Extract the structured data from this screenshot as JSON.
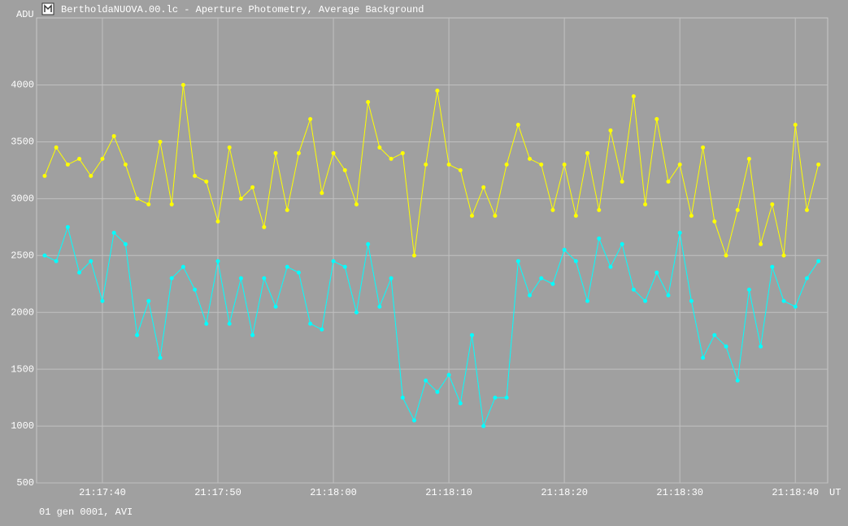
{
  "chart_data": {
    "type": "line",
    "title": "BertholdaNUOVA.00.lc - Aperture Photometry, Average Background",
    "ylabel": "ADU",
    "xlabel": "UT",
    "footer": "01 gen 0001, AVI",
    "x": [
      76655,
      76656,
      76657,
      76658,
      76659,
      76660,
      76661,
      76662,
      76663,
      76664,
      76665,
      76666,
      76667,
      76668,
      76669,
      76670,
      76671,
      76672,
      76673,
      76674,
      76675,
      76676,
      76677,
      76678,
      76679,
      76680,
      76681,
      76682,
      76683,
      76684,
      76685,
      76686,
      76687,
      76688,
      76689,
      76690,
      76691,
      76692,
      76693,
      76694,
      76695,
      76696,
      76697,
      76698,
      76699,
      76700,
      76701,
      76702,
      76703,
      76704,
      76705,
      76706,
      76707,
      76708,
      76709,
      76710,
      76711,
      76712,
      76713,
      76714,
      76715,
      76716,
      76717,
      76718,
      76719,
      76720,
      76721,
      76722
    ],
    "series": [
      {
        "name": "Yellow",
        "color": "#ffff00",
        "values": [
          3200,
          3450,
          3300,
          3350,
          3200,
          3350,
          3550,
          3300,
          3000,
          2950,
          3500,
          2950,
          4000,
          3200,
          3150,
          2800,
          3450,
          3000,
          3100,
          2750,
          3400,
          2900,
          3400,
          3700,
          3050,
          3400,
          3250,
          2950,
          3850,
          3450,
          3350,
          3400,
          2500,
          3300,
          3950,
          3300,
          3250,
          2850,
          3100,
          2850,
          3300,
          3650,
          3350,
          3300,
          2900,
          3300,
          2850,
          3400,
          2900,
          3600,
          3150,
          3900,
          2950,
          3700,
          3150,
          3300,
          2850,
          3450,
          2800,
          2500,
          2900,
          3350,
          2600,
          2950,
          2500,
          3650,
          2900,
          3300
        ]
      },
      {
        "name": "Cyan",
        "color": "#00ffff",
        "values": [
          2500,
          2450,
          2750,
          2350,
          2450,
          2100,
          2700,
          2600,
          1800,
          2100,
          1600,
          2300,
          2400,
          2200,
          1900,
          2450,
          1900,
          2300,
          1800,
          2300,
          2050,
          2400,
          2350,
          1900,
          1850,
          2450,
          2400,
          2000,
          2600,
          2050,
          2300,
          1250,
          1050,
          1400,
          1300,
          1450,
          1200,
          1800,
          1000,
          1250,
          1250,
          2450,
          2150,
          2300,
          2250,
          2550,
          2450,
          2100,
          2650,
          2400,
          2600,
          2200,
          2100,
          2350,
          2150,
          2700,
          2100,
          1600,
          1800,
          1700,
          1400,
          2200,
          1700,
          2400,
          2100,
          2050,
          2300,
          2450
        ]
      }
    ],
    "xlim": [
      76654.3,
      76722.8
    ],
    "xticks": [
      {
        "value": 76660,
        "label": "21:17:40"
      },
      {
        "value": 76670,
        "label": "21:17:50"
      },
      {
        "value": 76680,
        "label": "21:18:00"
      },
      {
        "value": 76690,
        "label": "21:18:10"
      },
      {
        "value": 76700,
        "label": "21:18:20"
      },
      {
        "value": 76710,
        "label": "21:18:30"
      },
      {
        "value": 76720,
        "label": "21:18:40"
      }
    ],
    "ylim": [
      500,
      4590
    ],
    "yticks": [
      500,
      1000,
      1500,
      2000,
      2500,
      3000,
      3500,
      4000
    ],
    "grid": true
  }
}
